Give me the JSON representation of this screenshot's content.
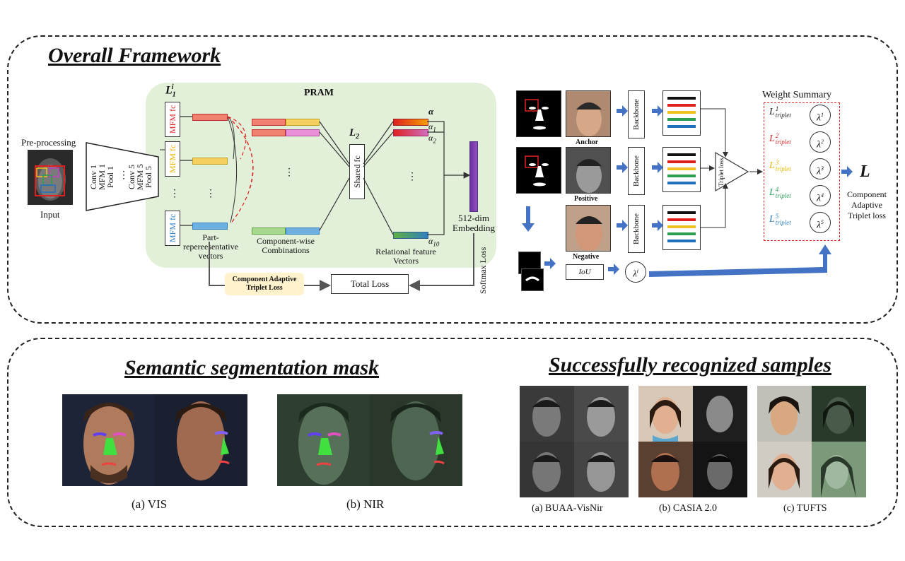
{
  "overall": {
    "title": "Overall Framework",
    "preprocessing": "Pre-processing",
    "input": "Input",
    "encoder": [
      "Conv 1",
      "MFM 1",
      "Pool 1",
      "⋮",
      "Conv 5",
      "MFM 5",
      "Pool 5"
    ],
    "l1_label": "L",
    "l1_sub": "1",
    "l1_sup": "i",
    "pram": "PRAM",
    "mfm_fc": "MFM fc",
    "part_vectors": "Part-\nrepereesentative\nvectors",
    "component_wise": "Component-wise\nCombinations",
    "l2_label": "L",
    "l2_sub": "2",
    "shared_fc": "Shared fc",
    "alpha": "α",
    "alpha1": "α",
    "alpha1_sub": "1",
    "alpha2": "α",
    "alpha2_sub": "2",
    "alpha10": "α",
    "alpha10_sub": "10",
    "relational": "Relational feature\nVectors",
    "embedding": "512-dim\nEmbedding",
    "softmax_loss": "Softmax Loss",
    "cat_loss": "Component Adaptive\nTriplet Loss",
    "total_loss": "Total Loss",
    "anchor": "Anchor",
    "positive": "Positive",
    "negative": "Negative",
    "backbone": "Backbone",
    "triplet_loss": "Triplet loss",
    "iou": "IoU",
    "lambda_i": "λ",
    "lambda_i_sup": "i",
    "weight_summary": "Weight Summary",
    "triplets": [
      {
        "label": "L",
        "sup": "1",
        "sub": "triplet",
        "color": "#222222",
        "lambda": "λ",
        "lsup": "1"
      },
      {
        "label": "L",
        "sup": "2",
        "sub": "triplet",
        "color": "#d62828",
        "lambda": "λ",
        "lsup": "2"
      },
      {
        "label": "L",
        "sup": "3",
        "sub": "triplet",
        "color": "#e8b400",
        "lambda": "λ",
        "lsup": "3"
      },
      {
        "label": "L",
        "sup": "4",
        "sub": "triplet",
        "color": "#2ca05a",
        "lambda": "λ",
        "lsup": "4"
      },
      {
        "label": "L",
        "sup": "5",
        "sub": "triplet",
        "color": "#2f7fc1",
        "lambda": "λ",
        "lsup": "5"
      }
    ],
    "big_l": "L",
    "component_adaptive": "Component\nAdaptive\nTriplet loss",
    "stripe_colors": [
      "#111111",
      "#e02020",
      "#f0c020",
      "#28a050",
      "#2070c0"
    ]
  },
  "segmentation": {
    "title": "Semantic segmentation mask",
    "vis_caption": "(a) VIS",
    "nir_caption": "(b) NIR"
  },
  "samples": {
    "title": "Successfully recognized samples",
    "captions": [
      "(a) BUAA-VisNir",
      "(b) CASIA 2.0",
      "(c) TUFTS"
    ]
  },
  "colors": {
    "pram_bg": "#e2efd9",
    "cat_loss_bg": "#fff2cc",
    "arrow_blue": "#4472c4",
    "dashed_red": "#e02020",
    "mfm_red": "#d62828",
    "mfm_yellow": "#e8b400",
    "mfm_blue": "#2f7fc1"
  }
}
